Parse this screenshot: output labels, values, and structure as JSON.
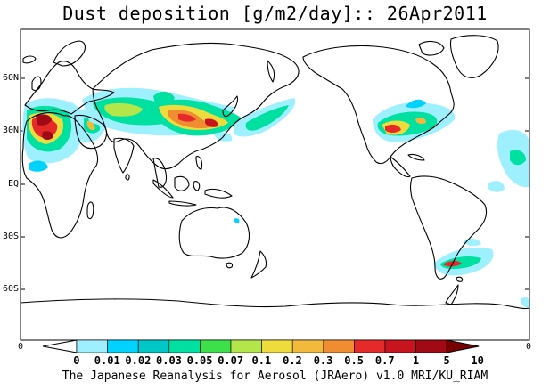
{
  "title": "Dust deposition [g/m2/day]:: 26Apr2011",
  "map": {
    "latitude_labels": [
      "60N",
      "30N",
      "EQ",
      "30S",
      "60S"
    ],
    "longitude_labels": [
      "0",
      "0"
    ]
  },
  "colorbar": {
    "ticks": [
      "0",
      "0.01",
      "0.02",
      "0.03",
      "0.05",
      "0.07",
      "0.1",
      "0.2",
      "0.3",
      "0.5",
      "0.7",
      "1",
      "5",
      "10"
    ],
    "colors": [
      "#ffffff",
      "#9ff0ff",
      "#00d2ff",
      "#00c8c8",
      "#00e0a0",
      "#3de04a",
      "#b4e64b",
      "#eddc3c",
      "#f3b93c",
      "#f08c32",
      "#e62a2a",
      "#c8141e",
      "#a00a14",
      "#780000"
    ]
  },
  "credit": "The Japanese Reanalysis for Aerosol (JRAero) v1.0 MRI/KU_RIAM"
}
